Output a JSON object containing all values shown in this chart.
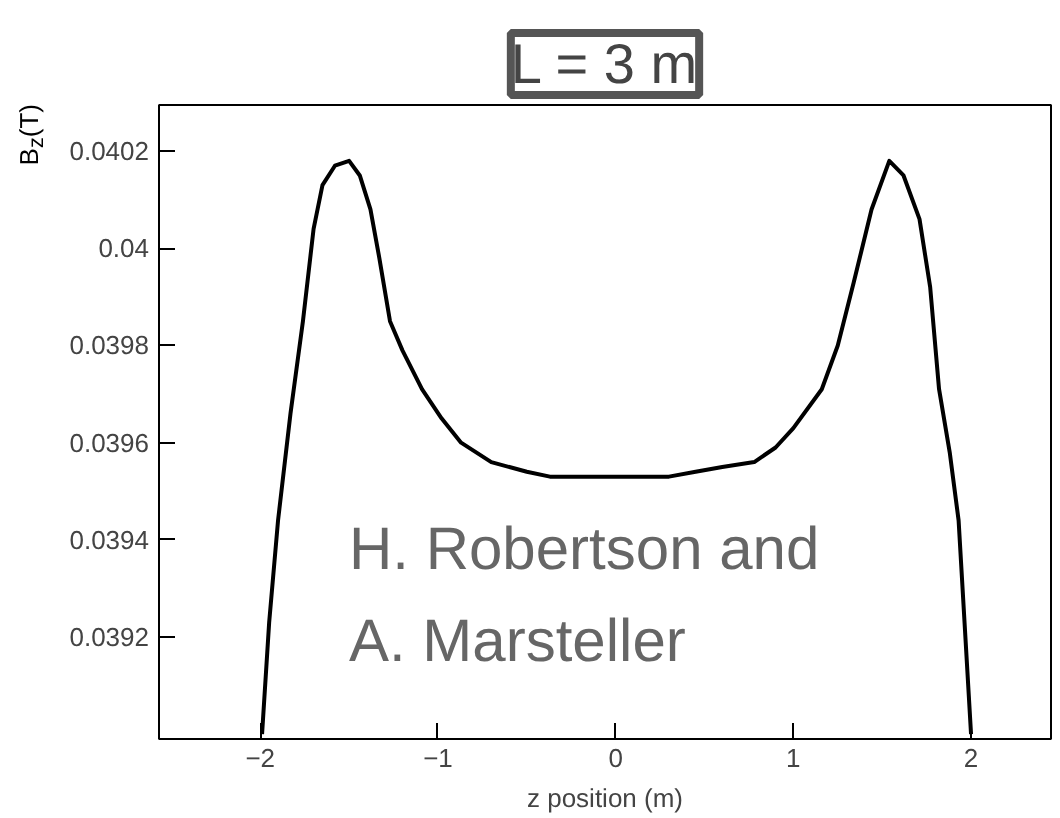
{
  "chart_data": {
    "type": "line",
    "title": "L = 3 m",
    "xlabel": "z position (m)",
    "ylabel": "B$_{z}$(T)",
    "annotations": [
      "H. Robertson and",
      "A. Marsteller"
    ],
    "series": [
      {
        "color": "#000000",
        "x": [
          -1.99,
          -1.95,
          -1.9,
          -1.83,
          -1.76,
          -1.7,
          -1.65,
          -1.58,
          -1.5,
          -1.44,
          -1.38,
          -1.33,
          -1.27,
          -1.2,
          -1.09,
          -0.98,
          -0.87,
          -0.7,
          -0.5,
          -0.37,
          0.0,
          0.3,
          0.45,
          0.6,
          0.78,
          0.9,
          1.0,
          1.16,
          1.25,
          1.34,
          1.44,
          1.54,
          1.62,
          1.71,
          1.77,
          1.82,
          1.88,
          1.93,
          2.0
        ],
        "values": [
          0.039,
          0.03923,
          0.03944,
          0.03966,
          0.03985,
          0.04004,
          0.04013,
          0.04017,
          0.04018,
          0.04015,
          0.04008,
          0.03998,
          0.03985,
          0.03979,
          0.03971,
          0.03965,
          0.0396,
          0.03956,
          0.03954,
          0.03953,
          0.03953,
          0.03953,
          0.03954,
          0.03955,
          0.03956,
          0.03959,
          0.03963,
          0.03971,
          0.0398,
          0.03993,
          0.04008,
          0.04018,
          0.04015,
          0.04006,
          0.03992,
          0.03971,
          0.03958,
          0.03944,
          0.039
        ]
      }
    ],
    "xlim": [
      -2.57,
      2.45
    ],
    "ylim": [
      0.03899,
      0.040295
    ],
    "xticks": [
      {
        "value": -2,
        "label": "−2"
      },
      {
        "value": -1,
        "label": "−1"
      },
      0,
      1,
      2
    ],
    "yticks": [
      0.0392,
      0.0394,
      0.0396,
      0.0398,
      0.04,
      0.0402
    ],
    "grid": false,
    "marker": "none",
    "line_style": "solid"
  }
}
